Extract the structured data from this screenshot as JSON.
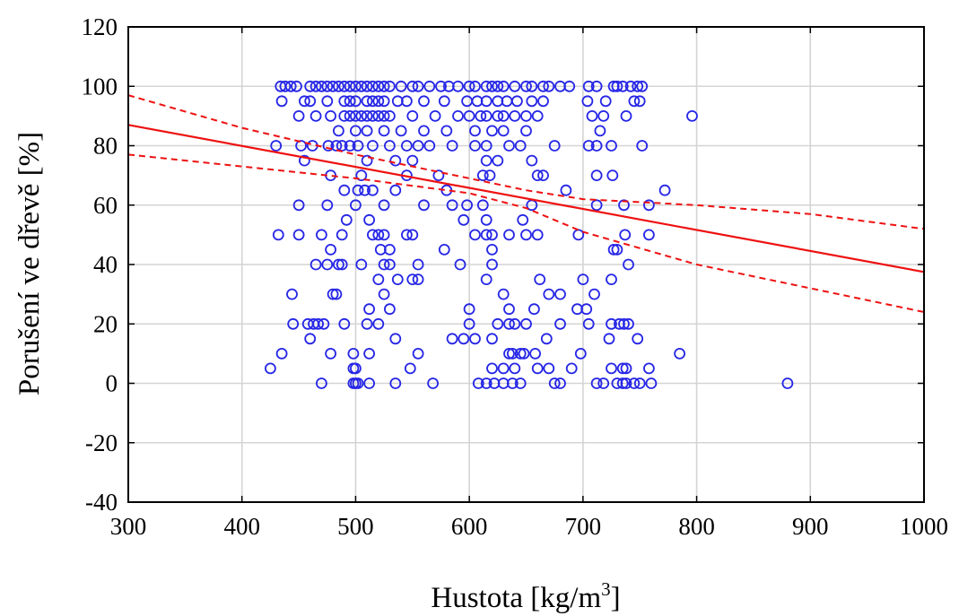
{
  "chart_data": {
    "type": "scatter",
    "title": "",
    "xlabel": "Hustota [kg/m",
    "xlabel_sup": "3",
    "xlabel_end": "]",
    "ylabel": "Porušení ve dřevě [%]",
    "xlim": [
      300,
      1000
    ],
    "ylim": [
      -40,
      120
    ],
    "x_ticks": [
      "300",
      "400",
      "500",
      "600",
      "700",
      "800",
      "900",
      "1000"
    ],
    "y_ticks": [
      "-40",
      "-20",
      "0",
      "20",
      "40",
      "60",
      "80",
      "100",
      "120"
    ],
    "grid": true,
    "colors": {
      "points": "#2626e6",
      "fit": "#ee1111"
    },
    "regression": {
      "x": [
        300,
        1000
      ],
      "y": [
        87,
        37.5
      ]
    },
    "ci_upper": {
      "x": [
        300,
        400,
        500,
        600,
        650,
        700,
        800,
        900,
        1000
      ],
      "y": [
        97,
        86,
        77,
        69,
        65,
        62,
        60,
        57,
        52
      ]
    },
    "ci_lower": {
      "x": [
        300,
        400,
        500,
        600,
        650,
        700,
        800,
        900,
        1000
      ],
      "y": [
        77,
        73,
        69,
        64,
        59,
        51,
        40,
        32,
        24
      ]
    },
    "points": [
      [
        434,
        100
      ],
      [
        438,
        100
      ],
      [
        443,
        100
      ],
      [
        448,
        100
      ],
      [
        460,
        100
      ],
      [
        465,
        100
      ],
      [
        470,
        100
      ],
      [
        475,
        100
      ],
      [
        480,
        100
      ],
      [
        485,
        100
      ],
      [
        490,
        100
      ],
      [
        495,
        100
      ],
      [
        500,
        100
      ],
      [
        505,
        100
      ],
      [
        510,
        100
      ],
      [
        515,
        100
      ],
      [
        520,
        100
      ],
      [
        525,
        100
      ],
      [
        530,
        100
      ],
      [
        540,
        100
      ],
      [
        550,
        100
      ],
      [
        555,
        100
      ],
      [
        565,
        100
      ],
      [
        575,
        100
      ],
      [
        582,
        100
      ],
      [
        590,
        100
      ],
      [
        600,
        100
      ],
      [
        605,
        100
      ],
      [
        615,
        100
      ],
      [
        620,
        100
      ],
      [
        625,
        100
      ],
      [
        630,
        100
      ],
      [
        640,
        100
      ],
      [
        650,
        100
      ],
      [
        655,
        100
      ],
      [
        665,
        100
      ],
      [
        670,
        100
      ],
      [
        680,
        100
      ],
      [
        688,
        100
      ],
      [
        705,
        100
      ],
      [
        712,
        100
      ],
      [
        727,
        100
      ],
      [
        730,
        100
      ],
      [
        735,
        100
      ],
      [
        742,
        100
      ],
      [
        748,
        100
      ],
      [
        752,
        100
      ],
      [
        435,
        95
      ],
      [
        455,
        95
      ],
      [
        460,
        95
      ],
      [
        475,
        95
      ],
      [
        490,
        95
      ],
      [
        495,
        95
      ],
      [
        500,
        95
      ],
      [
        510,
        95
      ],
      [
        515,
        95
      ],
      [
        520,
        95
      ],
      [
        525,
        95
      ],
      [
        537,
        95
      ],
      [
        545,
        95
      ],
      [
        560,
        95
      ],
      [
        578,
        95
      ],
      [
        598,
        95
      ],
      [
        607,
        95
      ],
      [
        615,
        95
      ],
      [
        625,
        95
      ],
      [
        633,
        95
      ],
      [
        642,
        95
      ],
      [
        655,
        95
      ],
      [
        665,
        95
      ],
      [
        704,
        95
      ],
      [
        720,
        95
      ],
      [
        745,
        95
      ],
      [
        750,
        95
      ],
      [
        450,
        90
      ],
      [
        465,
        90
      ],
      [
        478,
        90
      ],
      [
        490,
        90
      ],
      [
        495,
        90
      ],
      [
        500,
        90
      ],
      [
        505,
        90
      ],
      [
        510,
        90
      ],
      [
        515,
        90
      ],
      [
        520,
        90
      ],
      [
        525,
        90
      ],
      [
        530,
        90
      ],
      [
        550,
        90
      ],
      [
        570,
        90
      ],
      [
        590,
        90
      ],
      [
        600,
        90
      ],
      [
        610,
        90
      ],
      [
        615,
        90
      ],
      [
        625,
        90
      ],
      [
        630,
        90
      ],
      [
        640,
        90
      ],
      [
        650,
        90
      ],
      [
        660,
        90
      ],
      [
        708,
        90
      ],
      [
        718,
        90
      ],
      [
        738,
        90
      ],
      [
        796,
        90
      ],
      [
        485,
        85
      ],
      [
        500,
        85
      ],
      [
        510,
        85
      ],
      [
        525,
        85
      ],
      [
        540,
        85
      ],
      [
        560,
        85
      ],
      [
        580,
        85
      ],
      [
        605,
        85
      ],
      [
        620,
        85
      ],
      [
        630,
        85
      ],
      [
        650,
        85
      ],
      [
        715,
        85
      ],
      [
        430,
        80
      ],
      [
        452,
        80
      ],
      [
        462,
        80
      ],
      [
        476,
        80
      ],
      [
        483,
        80
      ],
      [
        488,
        80
      ],
      [
        495,
        80
      ],
      [
        502,
        80
      ],
      [
        515,
        80
      ],
      [
        530,
        80
      ],
      [
        545,
        80
      ],
      [
        555,
        80
      ],
      [
        565,
        80
      ],
      [
        585,
        80
      ],
      [
        605,
        80
      ],
      [
        615,
        80
      ],
      [
        635,
        80
      ],
      [
        645,
        80
      ],
      [
        675,
        80
      ],
      [
        705,
        80
      ],
      [
        712,
        80
      ],
      [
        725,
        80
      ],
      [
        752,
        80
      ],
      [
        455,
        75
      ],
      [
        510,
        75
      ],
      [
        535,
        75
      ],
      [
        550,
        75
      ],
      [
        615,
        75
      ],
      [
        625,
        75
      ],
      [
        655,
        75
      ],
      [
        478,
        70
      ],
      [
        505,
        70
      ],
      [
        545,
        70
      ],
      [
        573,
        70
      ],
      [
        612,
        70
      ],
      [
        618,
        70
      ],
      [
        660,
        70
      ],
      [
        665,
        70
      ],
      [
        712,
        70
      ],
      [
        726,
        70
      ],
      [
        490,
        65
      ],
      [
        502,
        65
      ],
      [
        508,
        65
      ],
      [
        515,
        65
      ],
      [
        535,
        65
      ],
      [
        580,
        65
      ],
      [
        685,
        65
      ],
      [
        772,
        65
      ],
      [
        450,
        60
      ],
      [
        475,
        60
      ],
      [
        500,
        60
      ],
      [
        525,
        60
      ],
      [
        560,
        60
      ],
      [
        585,
        60
      ],
      [
        598,
        60
      ],
      [
        612,
        60
      ],
      [
        655,
        60
      ],
      [
        712,
        60
      ],
      [
        736,
        60
      ],
      [
        758,
        60
      ],
      [
        492,
        55
      ],
      [
        512,
        55
      ],
      [
        595,
        55
      ],
      [
        615,
        55
      ],
      [
        647,
        55
      ],
      [
        432,
        50
      ],
      [
        450,
        50
      ],
      [
        470,
        50
      ],
      [
        488,
        50
      ],
      [
        515,
        50
      ],
      [
        520,
        50
      ],
      [
        525,
        50
      ],
      [
        545,
        50
      ],
      [
        550,
        50
      ],
      [
        605,
        50
      ],
      [
        615,
        50
      ],
      [
        620,
        50
      ],
      [
        635,
        50
      ],
      [
        650,
        50
      ],
      [
        660,
        50
      ],
      [
        696,
        50
      ],
      [
        737,
        50
      ],
      [
        758,
        50
      ],
      [
        478,
        45
      ],
      [
        522,
        45
      ],
      [
        530,
        45
      ],
      [
        578,
        45
      ],
      [
        620,
        45
      ],
      [
        727,
        45
      ],
      [
        730,
        45
      ],
      [
        465,
        40
      ],
      [
        475,
        40
      ],
      [
        485,
        40
      ],
      [
        488,
        40
      ],
      [
        505,
        40
      ],
      [
        525,
        40
      ],
      [
        530,
        40
      ],
      [
        555,
        40
      ],
      [
        592,
        40
      ],
      [
        620,
        40
      ],
      [
        740,
        40
      ],
      [
        520,
        35
      ],
      [
        537,
        35
      ],
      [
        550,
        35
      ],
      [
        555,
        35
      ],
      [
        615,
        35
      ],
      [
        662,
        35
      ],
      [
        700,
        35
      ],
      [
        725,
        35
      ],
      [
        444,
        30
      ],
      [
        480,
        30
      ],
      [
        483,
        30
      ],
      [
        525,
        30
      ],
      [
        630,
        30
      ],
      [
        670,
        30
      ],
      [
        680,
        30
      ],
      [
        710,
        30
      ],
      [
        512,
        25
      ],
      [
        530,
        25
      ],
      [
        600,
        25
      ],
      [
        635,
        25
      ],
      [
        657,
        25
      ],
      [
        695,
        25
      ],
      [
        703,
        25
      ],
      [
        445,
        20
      ],
      [
        458,
        20
      ],
      [
        463,
        20
      ],
      [
        467,
        20
      ],
      [
        472,
        20
      ],
      [
        490,
        20
      ],
      [
        510,
        20
      ],
      [
        520,
        20
      ],
      [
        600,
        20
      ],
      [
        625,
        20
      ],
      [
        635,
        20
      ],
      [
        640,
        20
      ],
      [
        650,
        20
      ],
      [
        680,
        20
      ],
      [
        705,
        20
      ],
      [
        725,
        20
      ],
      [
        732,
        20
      ],
      [
        736,
        20
      ],
      [
        740,
        20
      ],
      [
        435,
        10
      ],
      [
        460,
        15
      ],
      [
        478,
        10
      ],
      [
        498,
        10
      ],
      [
        512,
        10
      ],
      [
        535,
        15
      ],
      [
        555,
        10
      ],
      [
        585,
        15
      ],
      [
        595,
        15
      ],
      [
        605,
        15
      ],
      [
        620,
        15
      ],
      [
        635,
        10
      ],
      [
        638,
        10
      ],
      [
        645,
        10
      ],
      [
        648,
        10
      ],
      [
        658,
        10
      ],
      [
        668,
        15
      ],
      [
        698,
        10
      ],
      [
        723,
        15
      ],
      [
        748,
        15
      ],
      [
        785,
        10
      ],
      [
        425,
        5
      ],
      [
        498,
        5
      ],
      [
        500,
        5
      ],
      [
        548,
        5
      ],
      [
        620,
        5
      ],
      [
        630,
        5
      ],
      [
        640,
        5
      ],
      [
        660,
        5
      ],
      [
        670,
        5
      ],
      [
        690,
        5
      ],
      [
        725,
        5
      ],
      [
        735,
        5
      ],
      [
        738,
        5
      ],
      [
        758,
        5
      ],
      [
        470,
        0
      ],
      [
        498,
        0
      ],
      [
        500,
        0
      ],
      [
        502,
        0
      ],
      [
        512,
        0
      ],
      [
        535,
        0
      ],
      [
        568,
        0
      ],
      [
        608,
        0
      ],
      [
        615,
        0
      ],
      [
        622,
        0
      ],
      [
        630,
        0
      ],
      [
        638,
        0
      ],
      [
        645,
        0
      ],
      [
        675,
        0
      ],
      [
        680,
        0
      ],
      [
        712,
        0
      ],
      [
        718,
        0
      ],
      [
        730,
        0
      ],
      [
        735,
        0
      ],
      [
        738,
        0
      ],
      [
        745,
        0
      ],
      [
        750,
        0
      ],
      [
        760,
        0
      ],
      [
        880,
        0
      ]
    ]
  }
}
